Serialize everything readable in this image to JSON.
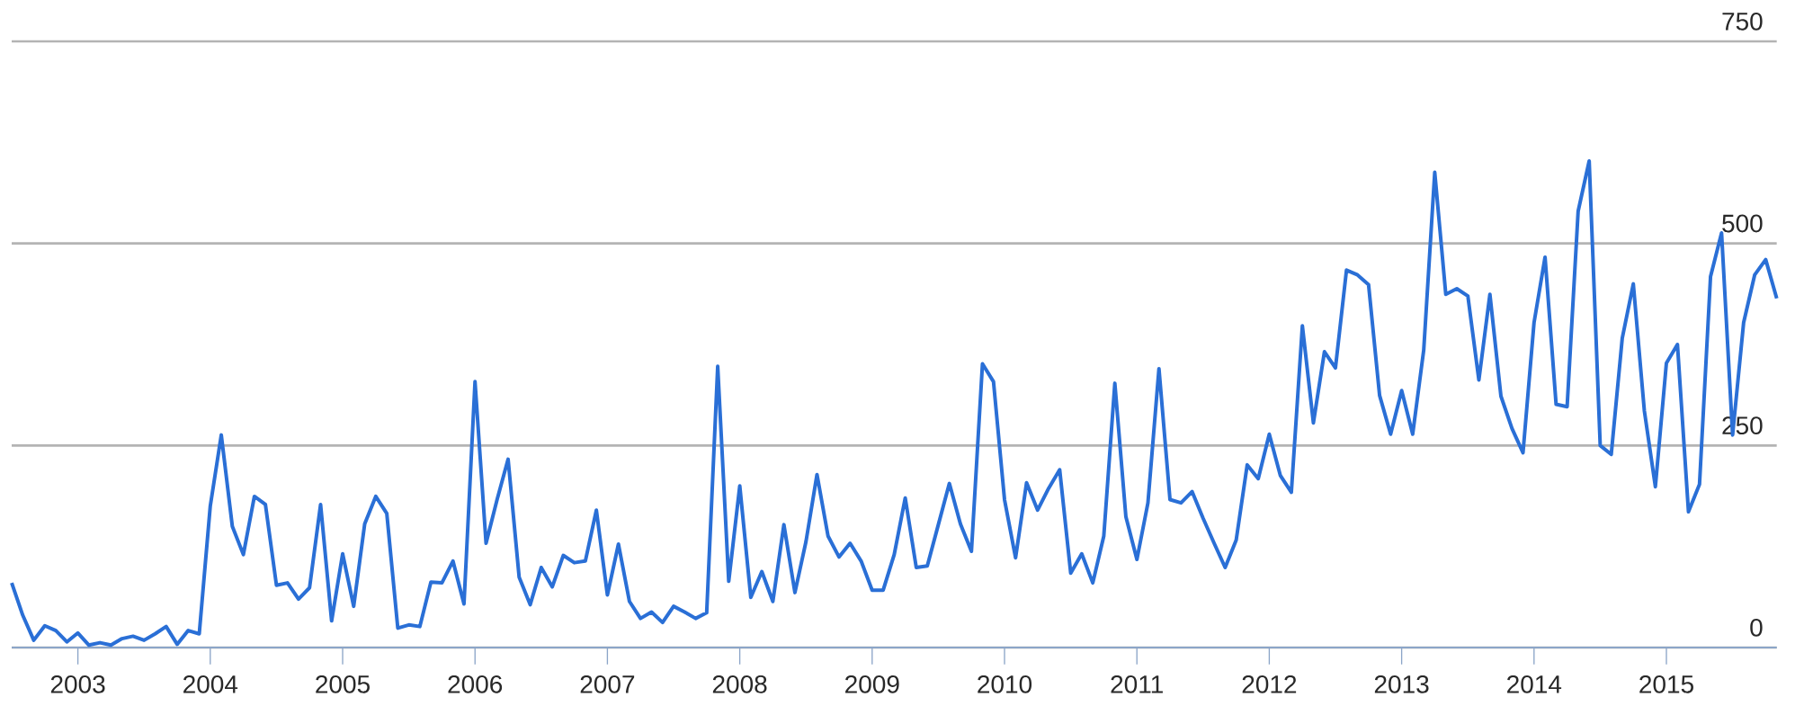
{
  "chart_data": {
    "type": "line",
    "x": [
      "2002-07",
      "2002-08",
      "2002-09",
      "2002-10",
      "2002-11",
      "2002-12",
      "2003-01",
      "2003-02",
      "2003-03",
      "2003-04",
      "2003-05",
      "2003-06",
      "2003-07",
      "2003-08",
      "2003-09",
      "2003-10",
      "2003-11",
      "2003-12",
      "2004-01",
      "2004-02",
      "2004-03",
      "2004-04",
      "2004-05",
      "2004-06",
      "2004-07",
      "2004-08",
      "2004-09",
      "2004-10",
      "2004-11",
      "2004-12",
      "2005-01",
      "2005-02",
      "2005-03",
      "2005-04",
      "2005-05",
      "2005-06",
      "2005-07",
      "2005-08",
      "2005-09",
      "2005-10",
      "2005-11",
      "2005-12",
      "2006-01",
      "2006-02",
      "2006-03",
      "2006-04",
      "2006-05",
      "2006-06",
      "2006-07",
      "2006-08",
      "2006-09",
      "2006-10",
      "2006-11",
      "2006-12",
      "2007-01",
      "2007-02",
      "2007-03",
      "2007-04",
      "2007-05",
      "2007-06",
      "2007-07",
      "2007-08",
      "2007-09",
      "2007-10",
      "2007-11",
      "2007-12",
      "2008-01",
      "2008-02",
      "2008-03",
      "2008-04",
      "2008-05",
      "2008-06",
      "2008-07",
      "2008-08",
      "2008-09",
      "2008-10",
      "2008-11",
      "2008-12",
      "2009-01",
      "2009-02",
      "2009-03",
      "2009-04",
      "2009-05",
      "2009-06",
      "2009-07",
      "2009-08",
      "2009-09",
      "2009-10",
      "2009-11",
      "2009-12",
      "2010-01",
      "2010-02",
      "2010-03",
      "2010-04",
      "2010-05",
      "2010-06",
      "2010-07",
      "2010-08",
      "2010-09",
      "2010-10",
      "2010-11",
      "2010-12",
      "2011-01",
      "2011-02",
      "2011-03",
      "2011-04",
      "2011-05",
      "2011-06",
      "2011-07",
      "2011-08",
      "2011-09",
      "2011-10",
      "2011-11",
      "2011-12",
      "2012-01",
      "2012-02",
      "2012-03",
      "2012-04",
      "2012-05",
      "2012-06",
      "2012-07",
      "2012-08",
      "2012-09",
      "2012-10",
      "2012-11",
      "2012-12",
      "2013-01",
      "2013-02",
      "2013-03",
      "2013-04",
      "2013-05",
      "2013-06",
      "2013-07",
      "2013-08",
      "2013-09",
      "2013-10",
      "2013-11",
      "2013-12",
      "2014-01",
      "2014-02",
      "2014-03",
      "2014-04",
      "2014-05",
      "2014-06",
      "2014-07",
      "2014-08",
      "2014-09",
      "2014-10",
      "2014-11",
      "2014-12",
      "2015-01",
      "2015-02",
      "2015-03",
      "2015-04",
      "2015-05",
      "2015-06",
      "2015-07",
      "2015-08",
      "2015-09",
      "2015-10",
      "2015-11"
    ],
    "series": [
      {
        "color": "#2a6fd6",
        "values": [
          80,
          40,
          9,
          27,
          21,
          7,
          18,
          3,
          6,
          3,
          11,
          14,
          9,
          17,
          26,
          4,
          21,
          17,
          175,
          263,
          150,
          115,
          187,
          177,
          77,
          80,
          60,
          74,
          177,
          33,
          116,
          51,
          153,
          187,
          166,
          24,
          28,
          26,
          81,
          80,
          107,
          54,
          329,
          129,
          183,
          233,
          87,
          53,
          99,
          75,
          114,
          105,
          107,
          170,
          65,
          128,
          57,
          36,
          44,
          31,
          51,
          44,
          36,
          43,
          348,
          82,
          200,
          62,
          94,
          57,
          152,
          68,
          131,
          214,
          138,
          112,
          129,
          107,
          71,
          71,
          115,
          185,
          99,
          101,
          152,
          203,
          153,
          119,
          351,
          329,
          183,
          111,
          204,
          170,
          197,
          220,
          92,
          116,
          80,
          138,
          327,
          162,
          109,
          179,
          345,
          183,
          179,
          193,
          160,
          129,
          99,
          133,
          226,
          209,
          264,
          213,
          192,
          398,
          278,
          366,
          346,
          467,
          461,
          449,
          312,
          264,
          318,
          264,
          368,
          588,
          437,
          444,
          435,
          331,
          437,
          311,
          271,
          241,
          402,
          483,
          301,
          298,
          540,
          602,
          250,
          239,
          383,
          450,
          293,
          199,
          352,
          375,
          168,
          202,
          459,
          513,
          263,
          402,
          461,
          480,
          432
        ]
      }
    ],
    "xlim": [
      "2002-07",
      "2015-11"
    ],
    "xticks": [
      {
        "value": "2003-01",
        "label": "2003"
      },
      {
        "value": "2004-01",
        "label": "2004"
      },
      {
        "value": "2005-01",
        "label": "2005"
      },
      {
        "value": "2006-01",
        "label": "2006"
      },
      {
        "value": "2007-01",
        "label": "2007"
      },
      {
        "value": "2008-01",
        "label": "2008"
      },
      {
        "value": "2009-01",
        "label": "2009"
      },
      {
        "value": "2010-01",
        "label": "2010"
      },
      {
        "value": "2011-01",
        "label": "2011"
      },
      {
        "value": "2012-01",
        "label": "2012"
      },
      {
        "value": "2013-01",
        "label": "2013"
      },
      {
        "value": "2014-01",
        "label": "2014"
      },
      {
        "value": "2015-01",
        "label": "2015"
      }
    ],
    "ylim": [
      0,
      750
    ],
    "yticks": [
      0,
      250,
      500,
      750
    ],
    "grid": "y",
    "legend": false,
    "marker": "none",
    "line_style": "solid"
  }
}
